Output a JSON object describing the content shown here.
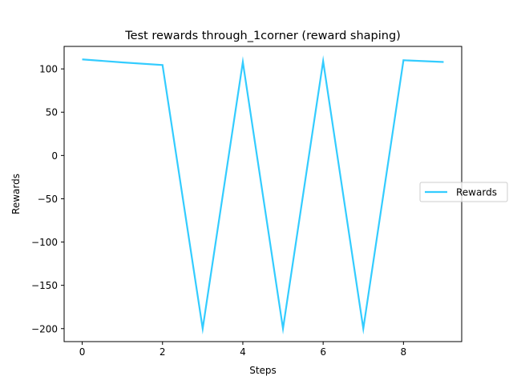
{
  "chart_data": {
    "type": "line",
    "title": "Test rewards through_1corner (reward shaping)",
    "xlabel": "Steps",
    "ylabel": "Rewards",
    "xlim": [
      -0.45,
      9.45
    ],
    "ylim": [
      -215,
      126
    ],
    "xticks": [
      0,
      2,
      4,
      6,
      8
    ],
    "yticks": [
      100,
      50,
      0,
      -50,
      -100,
      -150,
      -200
    ],
    "ytick_labels": [
      "100",
      "50",
      "0",
      "−50",
      "−100",
      "−150",
      "−200"
    ],
    "grid": false,
    "legend_position": "right",
    "series": [
      {
        "name": "Rewards",
        "color": "#33ccff",
        "x": [
          0,
          1,
          2,
          3,
          4,
          5,
          6,
          7,
          8,
          9
        ],
        "y": [
          111,
          107.5,
          104.5,
          -200,
          108,
          -200,
          109,
          -200,
          110,
          108
        ]
      }
    ]
  }
}
